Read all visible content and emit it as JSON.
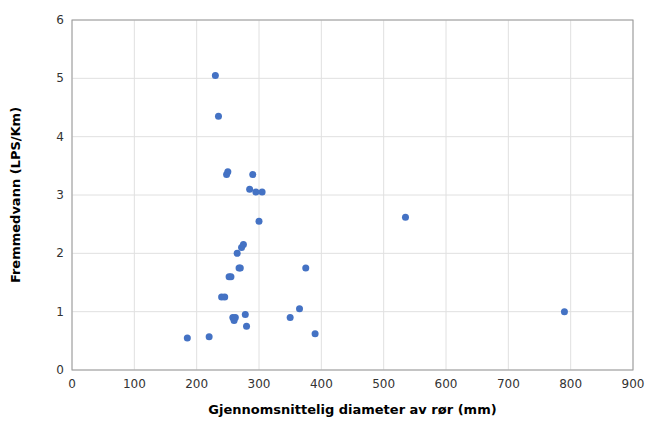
{
  "chart_data": {
    "type": "scatter",
    "x": [
      185,
      220,
      230,
      235,
      240,
      245,
      248,
      250,
      252,
      255,
      258,
      260,
      262,
      265,
      268,
      270,
      272,
      275,
      278,
      280,
      285,
      290,
      295,
      300,
      305,
      350,
      365,
      375,
      390,
      535,
      790
    ],
    "y": [
      0.55,
      0.57,
      5.05,
      4.35,
      1.25,
      1.25,
      3.35,
      3.4,
      1.6,
      1.6,
      0.9,
      0.85,
      0.9,
      2.0,
      1.75,
      1.75,
      2.1,
      2.15,
      0.95,
      0.75,
      3.1,
      3.35,
      3.05,
      2.55,
      3.05,
      0.9,
      1.05,
      1.75,
      0.62,
      2.62,
      1.0
    ],
    "color": "#4472C4",
    "xlabel": "Gjennomsnittelig diameter av rør (mm)",
    "ylabel": "Fremmedvann (LPS/Km)",
    "xlim": [
      0,
      900
    ],
    "ylim": [
      0,
      6
    ],
    "xticks": [
      0,
      100,
      200,
      300,
      400,
      500,
      600,
      700,
      800,
      900
    ],
    "yticks": [
      0,
      1,
      2,
      3,
      4,
      5,
      6
    ],
    "grid": true
  }
}
